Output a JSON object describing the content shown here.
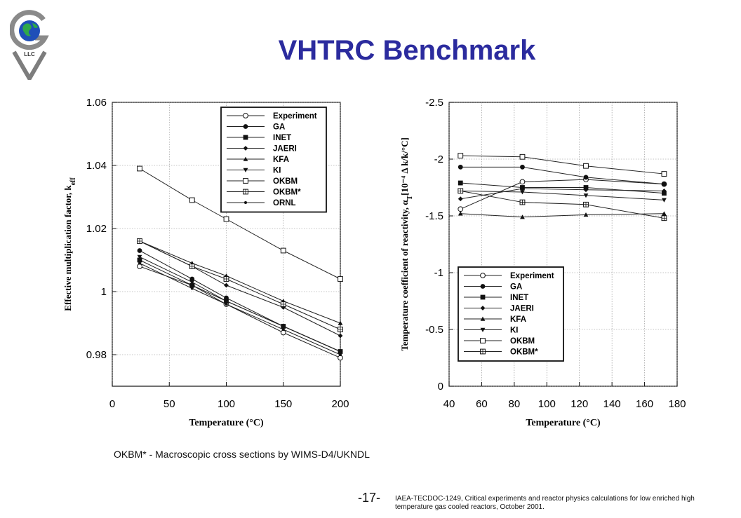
{
  "slide": {
    "title": "VHTRC Benchmark",
    "logo_text": "LLC",
    "caption": "OKBM* - Macroscopic cross sections by WIMS-D4/UKNDL",
    "page_number": "-17-",
    "citation": "IAEA-TECDOC-1249, Critical experiments and reactor physics calculations for low enriched high temperature gas cooled reactors, October 2001.",
    "title_color": "#2b2b9e"
  },
  "chart_data": [
    {
      "type": "line",
      "xlabel": "Temperature (°C)",
      "ylabel": "Effective multiplication factor, k",
      "ylabel_sub": "eff",
      "xlim": [
        0,
        200
      ],
      "ylim": [
        0.97,
        1.06
      ],
      "xticks": [
        0,
        50,
        100,
        150,
        200
      ],
      "yticks": [
        0.98,
        1,
        1.02,
        1.04,
        1.06
      ],
      "ytick_labels": [
        "0.98",
        "1",
        "1.02",
        "1.04",
        "1.06"
      ],
      "grid": true,
      "legend_position": "top-right",
      "x": [
        24,
        70,
        100,
        150,
        200
      ],
      "series": [
        {
          "name": "Experiment",
          "marker": "circle-open",
          "values": [
            1.008,
            1.002,
            0.996,
            0.987,
            0.979
          ]
        },
        {
          "name": "GA",
          "marker": "circle-filled",
          "values": [
            1.013,
            1.004,
            0.998,
            0.989,
            0.981
          ]
        },
        {
          "name": "INET",
          "marker": "square-filled",
          "values": [
            1.01,
            1.002,
            0.997,
            0.989,
            0.981
          ]
        },
        {
          "name": "JAERI",
          "marker": "diamond-filled",
          "values": [
            1.016,
            1.008,
            1.002,
            0.995,
            0.986
          ]
        },
        {
          "name": "KFA",
          "marker": "triangle-up",
          "values": [
            1.016,
            1.009,
            1.005,
            0.997,
            0.99
          ]
        },
        {
          "name": "KI",
          "marker": "triangle-down",
          "values": [
            1.011,
            1.003,
            0.997,
            0.989,
            0.981
          ]
        },
        {
          "name": "OKBM",
          "marker": "square-open",
          "values": [
            1.039,
            1.029,
            1.023,
            1.013,
            1.004
          ]
        },
        {
          "name": "OKBM*",
          "marker": "square-cross",
          "values": [
            1.016,
            1.008,
            1.004,
            0.996,
            0.988
          ]
        },
        {
          "name": "ORNL",
          "marker": "dot",
          "values": [
            1.009,
            1.001,
            0.996,
            0.988,
            0.98
          ]
        }
      ]
    },
    {
      "type": "line",
      "xlabel": "Temperature (°C)",
      "ylabel": "Temperature coefficient of reactivity, α",
      "ylabel_sub": "T",
      "ylabel_units": "[10⁻⁴ Δ k/k/°C]",
      "xlim": [
        40,
        180
      ],
      "ylim": [
        0,
        -2.5
      ],
      "xticks": [
        40,
        60,
        80,
        100,
        120,
        140,
        160,
        180
      ],
      "yticks": [
        0,
        -0.5,
        -1,
        -1.5,
        -2,
        -2.5
      ],
      "ytick_labels": [
        "0",
        "-0.5",
        "-1",
        "-1.5",
        "-2",
        "-2.5"
      ],
      "grid": true,
      "legend_position": "bottom-right",
      "x": [
        47,
        85,
        124,
        172
      ],
      "series": [
        {
          "name": "Experiment",
          "marker": "circle-open",
          "values": [
            -1.56,
            -1.8,
            -1.82,
            -1.78
          ]
        },
        {
          "name": "GA",
          "marker": "circle-filled",
          "values": [
            -1.93,
            -1.93,
            -1.84,
            -1.78
          ]
        },
        {
          "name": "INET",
          "marker": "square-filled",
          "values": [
            -1.79,
            -1.75,
            -1.75,
            -1.7
          ]
        },
        {
          "name": "JAERI",
          "marker": "diamond-filled",
          "values": [
            -1.65,
            -1.74,
            -1.73,
            -1.72
          ]
        },
        {
          "name": "KFA",
          "marker": "triangle-up",
          "values": [
            -1.52,
            -1.49,
            -1.51,
            -1.52
          ]
        },
        {
          "name": "KI",
          "marker": "triangle-down",
          "values": [
            -1.72,
            -1.71,
            -1.68,
            -1.64
          ]
        },
        {
          "name": "OKBM",
          "marker": "square-open",
          "values": [
            -2.03,
            -2.02,
            -1.94,
            -1.87
          ]
        },
        {
          "name": "OKBM*",
          "marker": "square-cross",
          "values": [
            -1.72,
            -1.62,
            -1.6,
            -1.48
          ]
        }
      ]
    }
  ]
}
